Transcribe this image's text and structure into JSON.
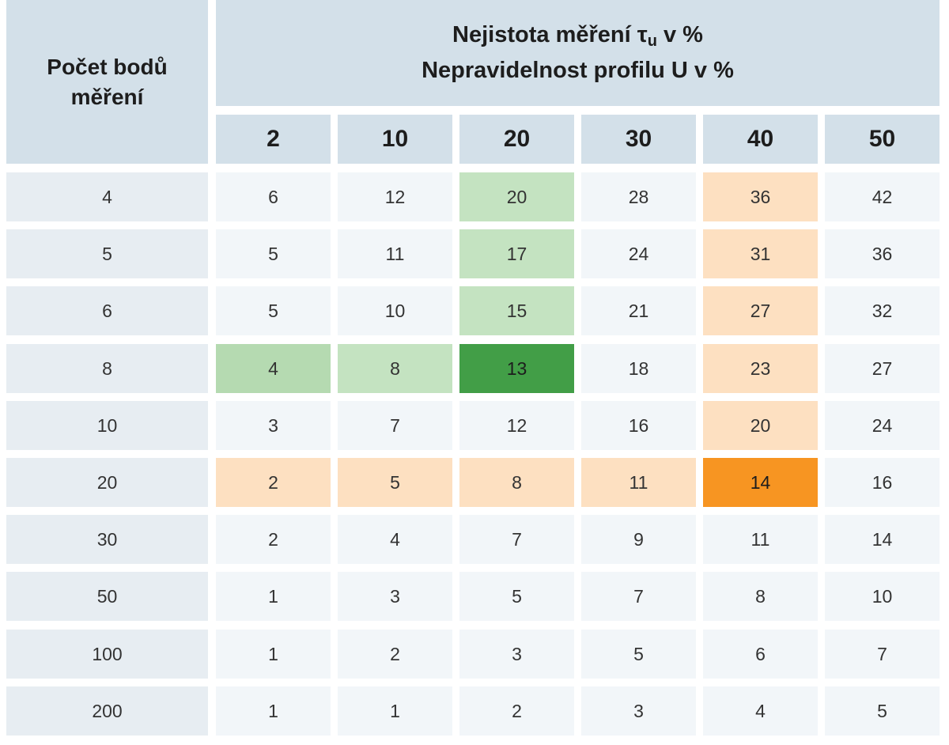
{
  "table": {
    "corner_header": "Počet bodů měření",
    "title_line1_pre": "Nejistota měření τ",
    "title_line1_sub": "u",
    "title_line1_post": " v %",
    "title_line2": "Nepravidelnost profilu U v %",
    "columns": [
      "2",
      "10",
      "20",
      "30",
      "40",
      "50"
    ],
    "rows": [
      {
        "label": "4",
        "values": [
          "6",
          "12",
          "20",
          "28",
          "36",
          "42"
        ],
        "highlight": [
          "",
          "",
          "g1",
          "",
          "o1",
          ""
        ]
      },
      {
        "label": "5",
        "values": [
          "5",
          "11",
          "17",
          "24",
          "31",
          "36"
        ],
        "highlight": [
          "",
          "",
          "g1",
          "",
          "o1",
          ""
        ]
      },
      {
        "label": "6",
        "values": [
          "5",
          "10",
          "15",
          "21",
          "27",
          "32"
        ],
        "highlight": [
          "",
          "",
          "g1",
          "",
          "o1",
          ""
        ]
      },
      {
        "label": "8",
        "values": [
          "4",
          "8",
          "13",
          "18",
          "23",
          "27"
        ],
        "highlight": [
          "g2",
          "g1",
          "g3",
          "",
          "o1",
          ""
        ]
      },
      {
        "label": "10",
        "values": [
          "3",
          "7",
          "12",
          "16",
          "20",
          "24"
        ],
        "highlight": [
          "",
          "",
          "",
          "",
          "o1",
          ""
        ]
      },
      {
        "label": "20",
        "values": [
          "2",
          "5",
          "8",
          "11",
          "14",
          "16"
        ],
        "highlight": [
          "o1",
          "o1",
          "o1",
          "o1",
          "o2",
          ""
        ]
      },
      {
        "label": "30",
        "values": [
          "2",
          "4",
          "7",
          "9",
          "11",
          "14"
        ],
        "highlight": [
          "",
          "",
          "",
          "",
          "",
          ""
        ]
      },
      {
        "label": "50",
        "values": [
          "1",
          "3",
          "5",
          "7",
          "8",
          "10"
        ],
        "highlight": [
          "",
          "",
          "",
          "",
          "",
          ""
        ]
      },
      {
        "label": "100",
        "values": [
          "1",
          "2",
          "3",
          "5",
          "6",
          "7"
        ],
        "highlight": [
          "",
          "",
          "",
          "",
          "",
          ""
        ]
      },
      {
        "label": "200",
        "values": [
          "1",
          "1",
          "2",
          "3",
          "4",
          "5"
        ],
        "highlight": [
          "",
          "",
          "",
          "",
          "",
          ""
        ]
      }
    ],
    "colors": {
      "header_bg": "#d3e0e9",
      "row_header_bg": "#e7edf2",
      "cell_bg": "#f2f6f9",
      "light_green": "#c4e3c1",
      "mid_green": "#b5dab1",
      "dark_green": "#429e47",
      "light_orange": "#fde0c1",
      "dark_orange": "#f79522"
    }
  }
}
